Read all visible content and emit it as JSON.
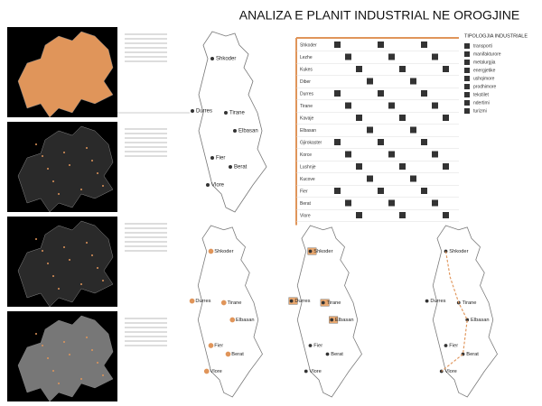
{
  "header": {
    "title": "ANALIZA E PLANIT INDUSTRIAL NE OROGJINE"
  },
  "maps": [
    {
      "cities": [
        "Shkoder",
        "Durres",
        "Tirane",
        "Elbasan",
        "Fier",
        "Berat",
        "Vlore"
      ]
    },
    {
      "cities": [
        "Shkoder",
        "Durres",
        "Tirane",
        "Elbasan",
        "Fier",
        "Berat",
        "Vlore"
      ]
    },
    {
      "cities": [
        "Shkoder",
        "Durres",
        "Tirane",
        "Elbasan",
        "Fier",
        "Berat",
        "Vlore"
      ]
    },
    {
      "cities": [
        "Shkoder",
        "Durres",
        "Tirane",
        "Elbasan",
        "Fier",
        "Berat",
        "Vlore"
      ]
    }
  ],
  "table": {
    "rows": [
      "Shkoder",
      "Lezhe",
      "Kukes",
      "Diber",
      "Durres",
      "Tirane",
      "Kavaje",
      "Elbasan",
      "Gjirokaster",
      "Korce",
      "Lushnje",
      "Kucove",
      "Fier",
      "Berat",
      "Vlore"
    ]
  },
  "legend": {
    "title": "TIPOLOGJIA INDUSTRIALE",
    "items": [
      "transporti",
      "manifakturore",
      "metalurgjia",
      "energjetike",
      "ushqimore",
      "prodhimore",
      "tekstilet",
      "ndertimi",
      "turizmi"
    ]
  }
}
